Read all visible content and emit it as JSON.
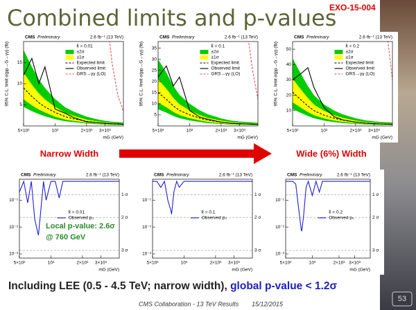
{
  "title": "Combined limits and p-values",
  "badge": "EXO-15-004",
  "arrow_left": "Narrow Width",
  "arrow_right": "Wide (6%) Width",
  "annotation": [
    "Local p-value: 2.6σ",
    "@ 760 GeV"
  ],
  "conclusion": [
    "Including LEE (0.5 - 4.5 TeV; narrow width), ",
    "global p-value < 1.2σ"
  ],
  "footer": [
    "CMS Collaboration - 13 TeV Results",
    "15/12/2015"
  ],
  "page_number": "53",
  "chart_data": [
    {
      "type": "line",
      "experiment": "CMS",
      "status": "Preliminary",
      "lumi": "2.6 fb⁻¹ (13 TeV)",
      "xlabel": "mG (GeV)",
      "ylabel": "95% C.L. limit σ(pp→G→γγ) (fb)",
      "legend_title": "k̃ = 0.01",
      "legend": "upper right",
      "xlog": true,
      "xlim": [
        500,
        4500
      ],
      "xticks": [
        {
          "value": 500,
          "label": "5×10²"
        },
        {
          "value": 1000,
          "label": "10³"
        },
        {
          "value": 2000,
          "label": "2×10³"
        },
        {
          "value": 3000,
          "label": "3×10³"
        }
      ],
      "ylim": [
        0,
        20
      ],
      "yticks": [
        5,
        10,
        15
      ],
      "x": [
        500,
        600,
        700,
        800,
        1000,
        1250,
        1500,
        2000,
        2500,
        3000,
        3500,
        4000,
        4500
      ],
      "series": [
        {
          "name": "±2σ",
          "style": "band",
          "color": "#00cc00",
          "values": [
            4.5,
            3.5,
            2.8,
            2.3,
            1.6,
            1.1,
            0.9,
            0.6,
            0.4,
            0.3,
            0.25,
            0.2,
            0.2
          ],
          "upper": [
            18,
            14,
            11,
            9,
            6.4,
            4.4,
            3.4,
            2.2,
            1.6,
            1.2,
            1,
            0.9,
            0.8
          ]
        },
        {
          "name": "±1σ",
          "style": "band",
          "color": "#ffff00",
          "values": [
            6.3,
            4.9,
            3.9,
            3.2,
            2.2,
            1.5,
            1.2,
            0.8,
            0.6,
            0.4,
            0.35,
            0.3,
            0.3
          ],
          "upper": [
            12.6,
            9.8,
            7.7,
            6.3,
            4.5,
            3.1,
            2.4,
            1.5,
            1.1,
            0.8,
            0.7,
            0.6,
            0.6
          ]
        },
        {
          "name": "Expected limit",
          "style": "dashed",
          "color": "#000000",
          "values": [
            9,
            7,
            5.5,
            4.5,
            3.2,
            2.2,
            1.7,
            1.1,
            0.8,
            0.6,
            0.5,
            0.45,
            0.4
          ]
        },
        {
          "name": "Observed limit",
          "style": "solid",
          "color": "#000000",
          "values": [
            12,
            16,
            10,
            14,
            4,
            3,
            2,
            1,
            0.8,
            0.6,
            0.5,
            0.5,
            0.4
          ]
        },
        {
          "name": "GRS→γγ (LO)",
          "style": "dashed",
          "color": "#e05050",
          "values": [
            null,
            null,
            null,
            null,
            null,
            null,
            null,
            null,
            null,
            30,
            15,
            7,
            3.5
          ]
        }
      ]
    },
    {
      "type": "line",
      "experiment": "CMS",
      "status": "Preliminary",
      "lumi": "2.6 fb⁻¹ (13 TeV)",
      "xlabel": "mG (GeV)",
      "ylabel": "95% C.L. limit σ(pp→G→γγ) (fb)",
      "legend_title": "k̃ = 0.1",
      "legend": "upper right",
      "xlog": true,
      "xlim": [
        500,
        4500
      ],
      "xticks": [
        {
          "value": 500,
          "label": "5×10²"
        },
        {
          "value": 1000,
          "label": "10³"
        },
        {
          "value": 2000,
          "label": "2×10³"
        },
        {
          "value": 3000,
          "label": "3×10³"
        }
      ],
      "ylim": [
        0,
        38
      ],
      "yticks": [
        5,
        10,
        15,
        20,
        25,
        30,
        35
      ],
      "x": [
        500,
        600,
        700,
        800,
        1000,
        1250,
        1500,
        2000,
        2500,
        3000,
        3500,
        4000,
        4500
      ],
      "series": [
        {
          "name": "±2σ",
          "style": "band",
          "color": "#00cc00",
          "values": [
            7.5,
            6,
            4.5,
            3.5,
            2.5,
            1.8,
            1.3,
            0.9,
            0.6,
            0.5,
            0.45,
            0.4,
            0.35
          ],
          "upper": [
            30,
            24,
            18,
            14,
            10,
            7,
            5.2,
            3.4,
            2.4,
            2,
            1.8,
            1.6,
            1.4
          ]
        },
        {
          "name": "±1σ",
          "style": "band",
          "color": "#ffff00",
          "values": [
            10.5,
            8.4,
            6.3,
            4.9,
            3.5,
            2.5,
            1.8,
            1.2,
            0.8,
            0.7,
            0.6,
            0.6,
            0.5
          ],
          "upper": [
            21,
            16.8,
            12.6,
            9.8,
            7,
            4.9,
            3.6,
            2.4,
            1.7,
            1.4,
            1.3,
            1.1,
            1
          ]
        },
        {
          "name": "Expected limit",
          "style": "dashed",
          "color": "#000000",
          "values": [
            15,
            12,
            9,
            7,
            5,
            3.5,
            2.6,
            1.7,
            1.2,
            1,
            0.9,
            0.8,
            0.7
          ]
        },
        {
          "name": "Observed limit",
          "style": "solid",
          "color": "#000000",
          "values": [
            22,
            27,
            18,
            22,
            7,
            4,
            3,
            1.7,
            1.2,
            1,
            0.9,
            0.8,
            0.7
          ]
        },
        {
          "name": "GRS→γγ (LO)",
          "style": "dashed",
          "color": "#e05050",
          "values": [
            null,
            null,
            null,
            null,
            null,
            null,
            null,
            null,
            null,
            null,
            45,
            25,
            12
          ]
        }
      ]
    },
    {
      "type": "line",
      "experiment": "CMS",
      "status": "Preliminary",
      "lumi": "2.6 fb⁻¹ (13 TeV)",
      "xlabel": "mG (GeV)",
      "ylabel": "95% C.L. limit σ(pp→G→γγ) (fb)",
      "legend_title": "k̃ = 0.2",
      "legend": "upper right",
      "xlog": true,
      "xlim": [
        500,
        4500
      ],
      "xticks": [
        {
          "value": 500,
          "label": "5×10²"
        },
        {
          "value": 1000,
          "label": "10³"
        },
        {
          "value": 2000,
          "label": "2×10³"
        },
        {
          "value": 3000,
          "label": "3×10³"
        }
      ],
      "ylim": [
        0,
        55
      ],
      "yticks": [
        10,
        20,
        30,
        40,
        50
      ],
      "x": [
        500,
        600,
        700,
        800,
        1000,
        1250,
        1500,
        2000,
        2500,
        3000,
        3500,
        4000,
        4500
      ],
      "series": [
        {
          "name": "±2σ",
          "style": "band",
          "color": "#00cc00",
          "values": [
            11,
            8.5,
            6.5,
            5,
            3.5,
            2.5,
            1.9,
            1.3,
            0.9,
            0.8,
            0.65,
            0.6,
            0.55
          ],
          "upper": [
            44,
            34,
            26,
            20,
            14,
            10,
            7.6,
            5,
            3.6,
            3,
            2.6,
            2.4,
            2.2
          ]
        },
        {
          "name": "±1σ",
          "style": "band",
          "color": "#ffff00",
          "values": [
            15.4,
            11.9,
            9.1,
            7,
            4.9,
            3.5,
            2.7,
            1.8,
            1.3,
            1.1,
            0.9,
            0.8,
            0.8
          ],
          "upper": [
            30.8,
            23.8,
            18.2,
            14,
            9.8,
            7,
            5.3,
            3.5,
            2.5,
            2.1,
            1.8,
            1.7,
            1.5
          ]
        },
        {
          "name": "Expected limit",
          "style": "dashed",
          "color": "#000000",
          "values": [
            22,
            17,
            13,
            10,
            7,
            5,
            3.8,
            2.5,
            1.8,
            1.5,
            1.3,
            1.2,
            1.1
          ]
        },
        {
          "name": "Observed limit",
          "style": "solid",
          "color": "#000000",
          "values": [
            30,
            34,
            38,
            25,
            12,
            6,
            4,
            2.5,
            1.8,
            1.5,
            1.3,
            1.2,
            1.1
          ]
        },
        {
          "name": "GRS→γγ (LO)",
          "style": "dashed",
          "color": "#e05050",
          "values": [
            null,
            null,
            null,
            null,
            null,
            null,
            null,
            null,
            null,
            null,
            null,
            60,
            30
          ]
        }
      ]
    },
    {
      "type": "line",
      "experiment": "CMS",
      "status": "Preliminary",
      "lumi": "2.6 fb⁻¹ (13 TeV)",
      "xlabel": "mG (GeV)",
      "legend_title": "k̃ = 0.01",
      "legend": "center",
      "xlog": true,
      "ylog": true,
      "xlim": [
        500,
        4500
      ],
      "xticks": [
        {
          "value": 500,
          "label": "5×10²"
        },
        {
          "value": 1000,
          "label": "10³"
        },
        {
          "value": 2000,
          "label": "2×10³"
        },
        {
          "value": 3000,
          "label": "3×10³"
        }
      ],
      "ylim": [
        0.0007,
        0.6
      ],
      "yticks": [
        {
          "value": 0.1,
          "label": "10⁻¹"
        },
        {
          "value": 0.01,
          "label": "10⁻²"
        },
        {
          "value": 0.001,
          "label": "10⁻³"
        }
      ],
      "sigma_lines": [
        {
          "value": 0.1587,
          "label": "1 σ"
        },
        {
          "value": 0.0228,
          "label": "2 σ"
        },
        {
          "value": 0.00135,
          "label": "3 σ"
        }
      ],
      "x": [
        500,
        550,
        600,
        650,
        700,
        750,
        760,
        800,
        850,
        900,
        1000,
        1100,
        1200,
        1300,
        1500,
        1700,
        2000,
        2500,
        3000,
        3500,
        4000,
        4500
      ],
      "series": [
        {
          "name": "Observed p₀",
          "style": "solid",
          "color": "#1f1fd0",
          "values": [
            0.2,
            0.5,
            0.08,
            0.5,
            0.02,
            0.006,
            0.005,
            0.04,
            0.5,
            0.1,
            0.5,
            0.5,
            0.12,
            0.5,
            0.5,
            0.5,
            0.5,
            0.5,
            0.5,
            0.5,
            0.5,
            0.5
          ]
        }
      ]
    },
    {
      "type": "line",
      "experiment": "CMS",
      "status": "Preliminary",
      "lumi": "2.6 fb⁻¹ (13 TeV)",
      "xlabel": "mG (GeV)",
      "legend_title": "k̃ = 0.1",
      "legend": "center",
      "xlog": true,
      "ylog": true,
      "xlim": [
        500,
        4500
      ],
      "xticks": [
        {
          "value": 500,
          "label": "5×10²"
        },
        {
          "value": 1000,
          "label": "10³"
        },
        {
          "value": 2000,
          "label": "2×10³"
        },
        {
          "value": 3000,
          "label": "3×10³"
        }
      ],
      "ylim": [
        0.0007,
        0.6
      ],
      "yticks": [
        {
          "value": 0.1,
          "label": "10⁻¹"
        },
        {
          "value": 0.01,
          "label": "10⁻²"
        },
        {
          "value": 0.001,
          "label": "10⁻³"
        }
      ],
      "sigma_lines": [
        {
          "value": 0.1587,
          "label": "1 σ"
        },
        {
          "value": 0.0228,
          "label": "2 σ"
        },
        {
          "value": 0.00135,
          "label": "3 σ"
        }
      ],
      "x": [
        500,
        550,
        600,
        650,
        700,
        750,
        760,
        800,
        850,
        900,
        1000,
        1100,
        1200,
        1300,
        1500,
        1700,
        2000,
        2500,
        3000,
        3500,
        4000,
        4500
      ],
      "series": [
        {
          "name": "Observed p₀",
          "style": "solid",
          "color": "#1f1fd0",
          "values": [
            0.5,
            0.5,
            0.3,
            0.5,
            0.1,
            0.04,
            0.03,
            0.2,
            0.5,
            0.3,
            0.5,
            0.5,
            0.5,
            0.5,
            0.5,
            0.5,
            0.5,
            0.5,
            0.5,
            0.5,
            0.5,
            0.5
          ]
        }
      ]
    },
    {
      "type": "line",
      "experiment": "CMS",
      "status": "Preliminary",
      "lumi": "2.6 fb⁻¹ (13 TeV)",
      "xlabel": "mG (GeV)",
      "legend_title": "k̃ = 0.2",
      "legend": "center",
      "xlog": true,
      "ylog": true,
      "xlim": [
        500,
        4500
      ],
      "xticks": [
        {
          "value": 500,
          "label": "5×10²"
        },
        {
          "value": 1000,
          "label": "10³"
        },
        {
          "value": 2000,
          "label": "2×10³"
        },
        {
          "value": 3000,
          "label": "3×10³"
        }
      ],
      "ylim": [
        0.0007,
        0.6
      ],
      "yticks": [
        {
          "value": 0.1,
          "label": "10⁻¹"
        },
        {
          "value": 0.01,
          "label": "10⁻²"
        },
        {
          "value": 0.001,
          "label": "10⁻³"
        }
      ],
      "sigma_lines": [
        {
          "value": 0.1587,
          "label": "1 σ"
        },
        {
          "value": 0.0228,
          "label": "2 σ"
        },
        {
          "value": 0.00135,
          "label": "3 σ"
        }
      ],
      "x": [
        500,
        550,
        600,
        650,
        700,
        750,
        760,
        800,
        850,
        900,
        1000,
        1100,
        1200,
        1300,
        1500,
        1700,
        2000,
        2500,
        3000,
        3500,
        4000,
        4500
      ],
      "series": [
        {
          "name": "Observed p₀",
          "style": "solid",
          "color": "#1f1fd0",
          "values": [
            0.5,
            0.5,
            0.5,
            0.4,
            0.05,
            0.008,
            0.007,
            0.03,
            0.3,
            0.5,
            0.15,
            0.5,
            0.2,
            0.5,
            0.5,
            0.5,
            0.5,
            0.5,
            0.5,
            0.5,
            0.5,
            0.5
          ]
        }
      ]
    }
  ]
}
